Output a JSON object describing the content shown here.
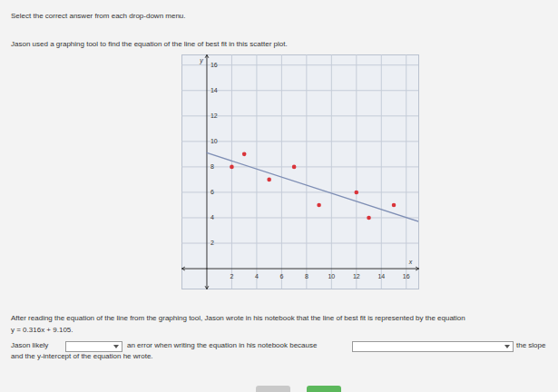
{
  "instruction": "Select the correct answer from each drop-down menu.",
  "prompt": "Jason used a graphing tool to find the equation of the line of best fit in this scatter plot.",
  "chart_data": {
    "type": "scatter",
    "x": [
      2,
      3,
      5,
      7,
      9,
      12,
      13,
      15
    ],
    "y": [
      8,
      9,
      7,
      8,
      5,
      6,
      4,
      5
    ],
    "color": "#d9343a",
    "xlim": [
      -2,
      17
    ],
    "ylim": [
      -1.6,
      16.8
    ],
    "xticks": [
      2,
      4,
      6,
      8,
      10,
      12,
      14,
      16
    ],
    "yticks": [
      2,
      4,
      6,
      8,
      10,
      12,
      14,
      16
    ],
    "grid": true,
    "xlabel": "x",
    "ylabel": "y",
    "trend_line": {
      "x": [
        0,
        17
      ],
      "y": [
        9.1,
        3.7
      ],
      "color": "#7f8fb5"
    }
  },
  "passage": "After reading the equation of the line from the graphing tool, Jason wrote in his notebook that the line of best fit is represented by the equation",
  "equation": "y = 0.316x + 9.105.",
  "sentence": {
    "part1": "Jason likely",
    "part2": "an error when writing the equation in his notebook because",
    "part3": "the slope",
    "part4": "and the y-intercept of the equation he wrote."
  }
}
